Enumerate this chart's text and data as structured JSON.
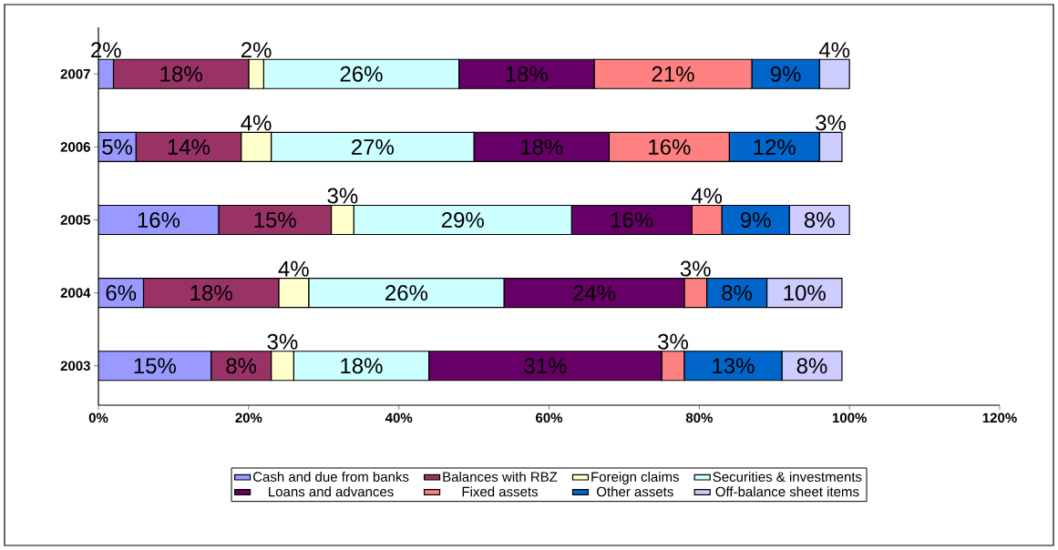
{
  "chart_data": {
    "type": "bar",
    "orientation": "horizontal",
    "stacked": true,
    "legend": "bottom",
    "categories": [
      "2007",
      "2006",
      "2005",
      "2004",
      "2003"
    ],
    "xlim": [
      0,
      120
    ],
    "xticks": [
      {
        "value": 0,
        "label": "0%"
      },
      {
        "value": 20,
        "label": "20%"
      },
      {
        "value": 40,
        "label": "40%"
      },
      {
        "value": 60,
        "label": "60%"
      },
      {
        "value": 80,
        "label": "80%"
      },
      {
        "value": 100,
        "label": "100%"
      },
      {
        "value": 120,
        "label": "120%"
      }
    ],
    "series": [
      {
        "name": "Cash and due from banks",
        "color": "#9999ff",
        "values": [
          2,
          5,
          16,
          6,
          15
        ],
        "value_labels": [
          "2%",
          "5%",
          "16%",
          "6%",
          "15%"
        ]
      },
      {
        "name": "Balances with RBZ",
        "color": "#993366",
        "values": [
          18,
          14,
          15,
          18,
          8
        ],
        "value_labels": [
          "18%",
          "14%",
          "15%",
          "18%",
          "8%"
        ]
      },
      {
        "name": "Foreign claims",
        "color": "#ffffcc",
        "values": [
          2,
          4,
          3,
          4,
          3
        ],
        "value_labels": [
          "2%",
          "4%",
          "3%",
          "4%",
          "3%"
        ]
      },
      {
        "name": "Securities & investments",
        "color": "#ccffff",
        "values": [
          26,
          27,
          29,
          26,
          18
        ],
        "value_labels": [
          "26%",
          "27%",
          "29%",
          "26%",
          "18%"
        ]
      },
      {
        "name": "Loans and advances",
        "color": "#660066",
        "values": [
          18,
          18,
          16,
          24,
          31
        ],
        "value_labels": [
          "18%",
          "18%",
          "16%",
          "24%",
          "31%"
        ]
      },
      {
        "name": "Fixed assets",
        "color": "#ff8080",
        "values": [
          21,
          16,
          4,
          3,
          3
        ],
        "value_labels": [
          "21%",
          "16%",
          "4%",
          "3%",
          "3%"
        ]
      },
      {
        "name": "Other assets",
        "color": "#0066cc",
        "values": [
          9,
          12,
          9,
          8,
          13
        ],
        "value_labels": [
          "9%",
          "12%",
          "9%",
          "8%",
          "13%"
        ]
      },
      {
        "name": "Off-balance sheet items",
        "color": "#ccccff",
        "values": [
          4,
          3,
          8,
          10,
          8
        ],
        "value_labels": [
          "4%",
          "3%",
          "8%",
          "10%",
          "8%"
        ]
      }
    ]
  }
}
